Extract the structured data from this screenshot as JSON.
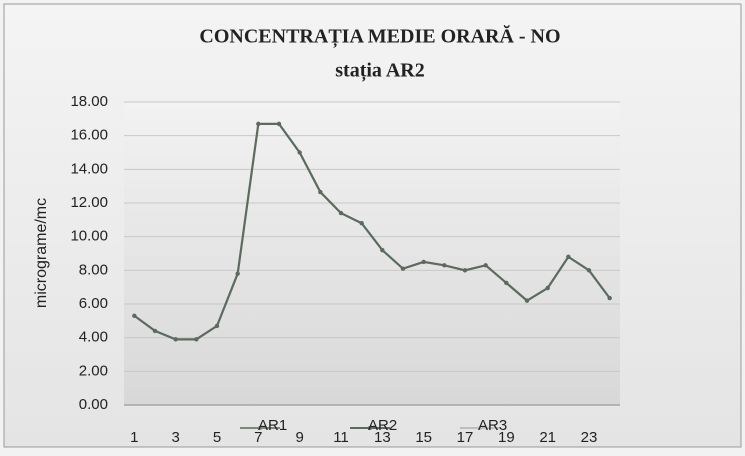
{
  "chart_data": {
    "type": "line",
    "title": "CONCENTRAȚIA MEDIE ORARĂ - NO",
    "subtitle": "stația AR2",
    "y_label": "micrograme/mc",
    "categories": [
      "1",
      null,
      "3",
      null,
      "5",
      null,
      "7",
      null,
      "9",
      null,
      "11",
      null,
      "13",
      null,
      "15",
      null,
      "17",
      null,
      "19",
      null,
      "21",
      null,
      "23",
      null
    ],
    "series": [
      {
        "name": "AR1",
        "color": "#7a8a7a",
        "values": [
          null,
          null,
          null,
          null,
          null,
          null,
          null,
          null,
          null,
          null,
          null,
          null,
          null,
          null,
          null,
          null,
          null,
          null,
          null,
          null,
          null,
          null,
          null,
          null
        ]
      },
      {
        "name": "AR2",
        "color": "#5b6b5e",
        "values": [
          5.3,
          4.4,
          3.9,
          3.9,
          4.7,
          7.8,
          16.7,
          16.7,
          15.0,
          12.65,
          11.4,
          10.8,
          9.2,
          8.1,
          8.5,
          8.3,
          8.0,
          8.3,
          7.25,
          6.2,
          6.95,
          8.8,
          8.0,
          6.35
        ]
      },
      {
        "name": "AR3",
        "color": "#b8c0b8",
        "values": [
          null,
          null,
          null,
          null,
          null,
          null,
          null,
          null,
          null,
          null,
          null,
          null,
          null,
          null,
          null,
          null,
          null,
          null,
          null,
          null,
          null,
          null,
          null,
          null
        ]
      }
    ],
    "ylim": [
      0,
      18
    ],
    "yticks": [
      {
        "value": 0,
        "label": "0.00"
      },
      {
        "value": 2,
        "label": "2.00"
      },
      {
        "value": 4,
        "label": "4.00"
      },
      {
        "value": 6,
        "label": "6.00"
      },
      {
        "value": 8,
        "label": "8.00"
      },
      {
        "value": 10,
        "label": "10.00"
      },
      {
        "value": 12,
        "label": "12.00"
      },
      {
        "value": 14,
        "label": "14.00"
      },
      {
        "value": 16,
        "label": "16.00"
      },
      {
        "value": 18,
        "label": "18.00"
      }
    ],
    "grid": true,
    "legend": "bottom"
  }
}
